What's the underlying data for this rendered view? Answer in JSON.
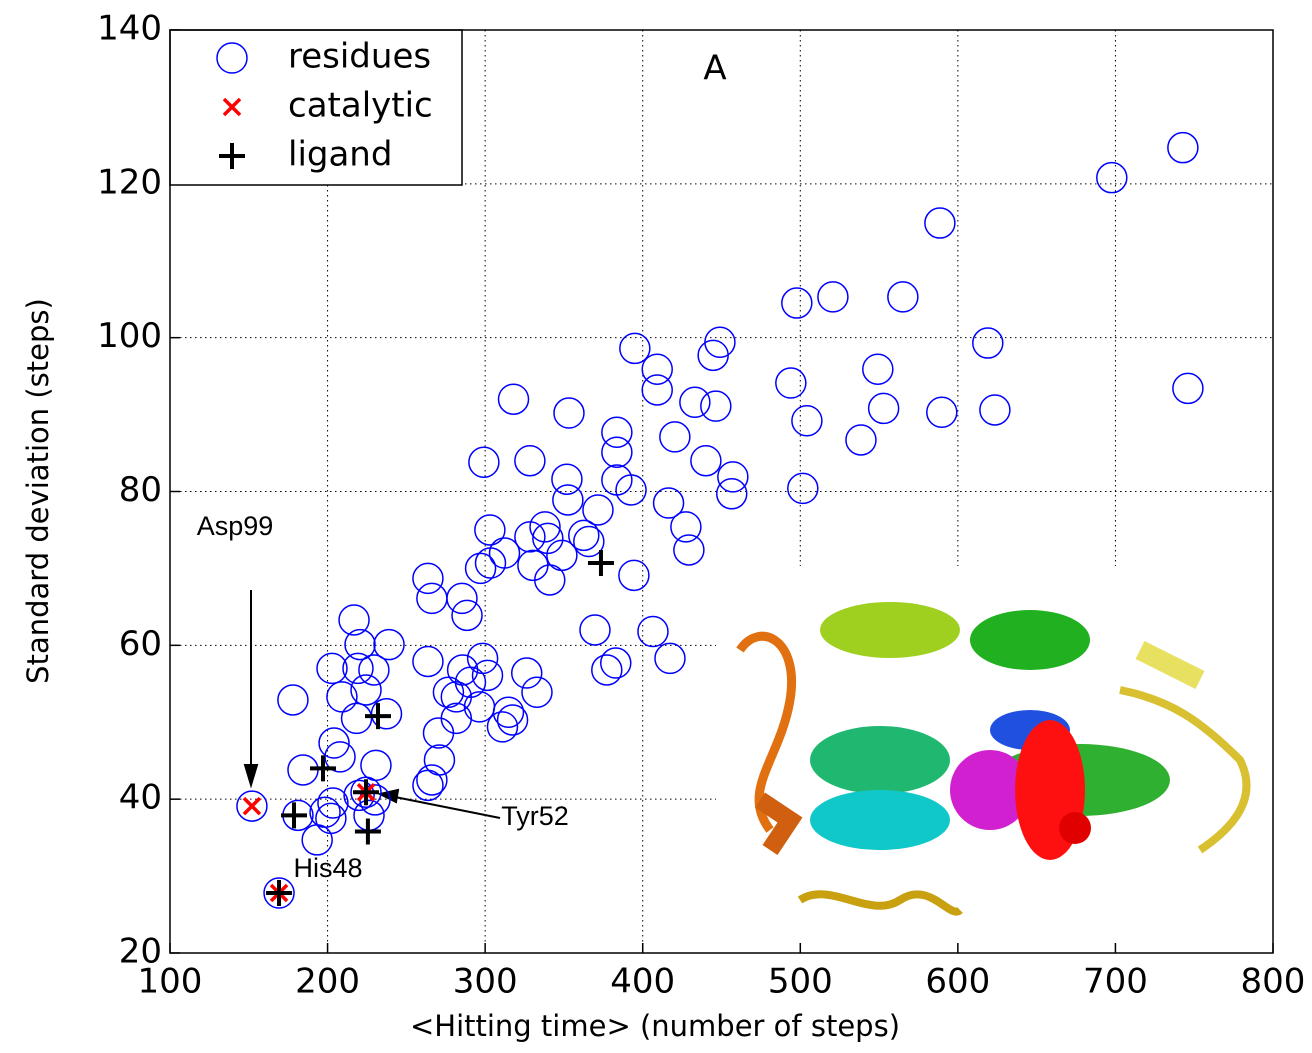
{
  "chart_data": {
    "type": "scatter",
    "x_label": "<Hitting time> (number of steps)",
    "y_label": "Standard deviation (steps)",
    "xlim": [
      100,
      800
    ],
    "ylim": [
      20,
      140
    ],
    "xticks": [
      100,
      200,
      300,
      400,
      500,
      600,
      700,
      800
    ],
    "yticks": [
      20,
      40,
      60,
      80,
      100,
      120,
      140
    ],
    "grid": true,
    "legend": "upper-left",
    "annotations": [
      "A",
      "Asp99",
      "Tyr52",
      "His48"
    ],
    "series": [
      {
        "name": "residues",
        "color": "#0000ff",
        "marker": "circle",
        "x": [
          742.8,
          697.7,
          588.6,
          497.8,
          520.7,
          565.1,
          619,
          449,
          444.7,
          395,
          409.2,
          409.2,
          549.2,
          494,
          746,
          433.1,
          446.4,
          318,
          552.9,
          589.8,
          623.5,
          504.2,
          353.2,
          538.5,
          420.4,
          383.6,
          383.6,
          440.1,
          299.2,
          328.4,
          383.6,
          457.2,
          351.9,
          392.6,
          456.5,
          501.6,
          352.5,
          416.4,
          371.6,
          303,
          338,
          328.4,
          339.8,
          427.4,
          362.6,
          312.3,
          297.1,
          303.4,
          348.7,
          365.8,
          429.3,
          330.3,
          341,
          394.4,
          263.7,
          266.2,
          285.3,
          288.5,
          369.7,
          406.5,
          216.8,
          220.6,
          239,
          417.3,
          298.4,
          382.9,
          377.2,
          263.7,
          326.4,
          219.3,
          229.4,
          202.8,
          301.5,
          285.7,
          290.7,
          276.7,
          281.7,
          332.9,
          209.1,
          178,
          224.4,
          296.4,
          314.8,
          317.4,
          311,
          281.7,
          218.4,
          237.4,
          270.4,
          204.1,
          207.9,
          271,
          184.4,
          230.7,
          266.2,
          263.7,
          220,
          203.4,
          198.4,
          230.1,
          226.3,
          181.2,
          202.1,
          193.4,
          152,
          224.4,
          169.2
        ],
        "values": [
          124.7,
          120.8,
          114.9,
          104.5,
          105.3,
          105.3,
          99.3,
          99.4,
          97.7,
          98.6,
          95.9,
          93.2,
          95.9,
          94.1,
          93.4,
          91.6,
          91.1,
          92,
          90.8,
          90.3,
          90.6,
          89.2,
          90.2,
          86.7,
          87.1,
          87.7,
          85.1,
          84,
          83.8,
          84,
          81.5,
          81.9,
          81.6,
          80.2,
          79.7,
          80.4,
          78.9,
          78.5,
          77.6,
          75,
          75.4,
          74.1,
          73.9,
          75.4,
          74.3,
          72,
          70,
          70.7,
          71.7,
          73.5,
          72.4,
          70.4,
          68.5,
          69.1,
          68.7,
          66.1,
          66.1,
          63.9,
          62,
          61.8,
          63.3,
          60.1,
          60.1,
          58.3,
          58.3,
          57.7,
          56.8,
          57.9,
          56.4,
          57,
          56.8,
          57,
          56.1,
          56.8,
          55.2,
          53.9,
          53.3,
          53.9,
          53.3,
          52.9,
          54.2,
          52,
          51.3,
          50.3,
          49.4,
          50.5,
          50.5,
          51.1,
          48.6,
          47.3,
          45.5,
          45.1,
          43.8,
          44.4,
          42.5,
          41.8,
          40.5,
          39.5,
          38.3,
          39.9,
          37.9,
          37.9,
          37.5,
          34.7,
          39.1,
          40.9,
          27.8
        ]
      },
      {
        "name": "catalytic",
        "color": "#ff0000",
        "marker": "x",
        "x": [
          152,
          224.4,
          169.2
        ],
        "values": [
          39.1,
          40.9,
          27.8
        ]
      },
      {
        "name": "ligand",
        "color": "#000000",
        "marker": "plus",
        "x": [
          373.5,
          232,
          197.1,
          224.4,
          178.7,
          225.6,
          169.2
        ],
        "values": [
          70.7,
          50.8,
          44,
          40.9,
          37.9,
          35.8,
          27.8
        ]
      }
    ]
  }
}
